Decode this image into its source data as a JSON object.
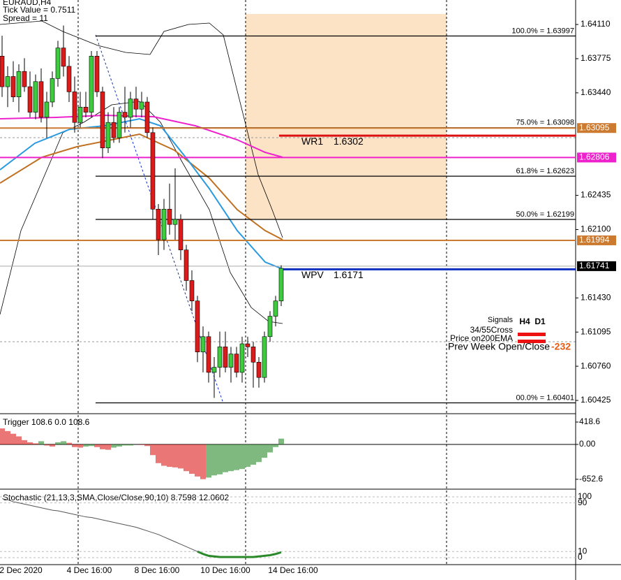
{
  "header": {
    "symbol": "EURAUD,H4",
    "tick_value": "Tick Value = 0.7511",
    "spread": "Spread = 11"
  },
  "price": {
    "ylim": [
      1.60295,
      1.6435
    ],
    "ticks": [
      {
        "value": 1.6411,
        "label": "1.64110"
      },
      1.63775,
      {
        "value": 1.6344,
        "label": "1.63440"
      },
      1.62435,
      {
        "value": 1.621,
        "label": "1.62100"
      },
      {
        "value": 1.6143,
        "label": "1.61430"
      },
      1.61095,
      {
        "value": 1.6076,
        "label": "1.60760"
      },
      1.60425
    ],
    "candles": [
      [
        1.638,
        1.64,
        1.634,
        1.635
      ],
      [
        1.635,
        1.637,
        1.633,
        1.636
      ],
      [
        1.636,
        1.6375,
        1.6335,
        1.634
      ],
      [
        1.634,
        1.6372,
        1.6325,
        1.6365
      ],
      [
        1.6365,
        1.6378,
        1.6345,
        1.635
      ],
      [
        1.635,
        1.6365,
        1.632,
        1.6325
      ],
      [
        1.6325,
        1.6362,
        1.6318,
        1.6355
      ],
      [
        1.6355,
        1.6368,
        1.6315,
        1.632
      ],
      [
        1.632,
        1.6345,
        1.63,
        1.6335
      ],
      [
        1.6335,
        1.6365,
        1.633,
        1.6358
      ],
      [
        1.6358,
        1.6395,
        1.635,
        1.6388
      ],
      [
        1.6388,
        1.641,
        1.636,
        1.637
      ],
      [
        1.637,
        1.638,
        1.6335,
        1.6345
      ],
      [
        1.6345,
        1.636,
        1.6305,
        1.6315
      ],
      [
        1.6315,
        1.6345,
        1.631,
        1.633
      ],
      [
        1.633,
        1.6345,
        1.632,
        1.6325
      ],
      [
        1.6325,
        1.6385,
        1.632,
        1.638
      ],
      [
        1.638,
        1.6385,
        1.634,
        1.6345
      ],
      [
        1.6345,
        1.635,
        1.628,
        1.629
      ],
      [
        1.629,
        1.6325,
        1.6285,
        1.6315
      ],
      [
        1.6315,
        1.633,
        1.6295,
        1.63
      ],
      [
        1.63,
        1.633,
        1.6295,
        1.6325
      ],
      [
        1.6325,
        1.635,
        1.6305,
        1.632
      ],
      [
        1.632,
        1.6345,
        1.631,
        1.6338
      ],
      [
        1.6338,
        1.635,
        1.632,
        1.6328
      ],
      [
        1.6328,
        1.6345,
        1.632,
        1.6335
      ],
      [
        1.6335,
        1.634,
        1.63,
        1.6305
      ],
      [
        1.6305,
        1.631,
        1.622,
        1.623
      ],
      [
        1.623,
        1.6235,
        1.6185,
        1.62
      ],
      [
        1.62,
        1.624,
        1.619,
        1.623
      ],
      [
        1.623,
        1.6255,
        1.6205,
        1.6215
      ],
      [
        1.6215,
        1.627,
        1.62,
        1.622
      ],
      [
        1.622,
        1.6225,
        1.618,
        1.619
      ],
      [
        1.619,
        1.6195,
        1.615,
        1.616
      ],
      [
        1.616,
        1.617,
        1.613,
        1.614
      ],
      [
        1.614,
        1.6145,
        1.608,
        1.609
      ],
      [
        1.609,
        1.6115,
        1.607,
        1.6105
      ],
      [
        1.6105,
        1.611,
        1.606,
        1.607
      ],
      [
        1.607,
        1.6085,
        1.6045,
        1.6075
      ],
      [
        1.6075,
        1.611,
        1.6065,
        1.6095
      ],
      [
        1.6095,
        1.611,
        1.607,
        1.6075
      ],
      [
        1.6075,
        1.6095,
        1.606,
        1.6088
      ],
      [
        1.6088,
        1.6095,
        1.6065,
        1.607
      ],
      [
        1.607,
        1.6105,
        1.606,
        1.6098
      ],
      [
        1.6098,
        1.6105,
        1.6085,
        1.6095
      ],
      [
        1.6095,
        1.61,
        1.6055,
        1.608
      ],
      [
        1.608,
        1.6085,
        1.6055,
        1.6065
      ],
      [
        1.6065,
        1.611,
        1.606,
        1.6105
      ],
      [
        1.6105,
        1.613,
        1.61,
        1.6125
      ],
      [
        1.6125,
        1.6145,
        1.6115,
        1.614
      ],
      [
        1.614,
        1.6175,
        1.6135,
        1.6172
      ]
    ],
    "fib_levels": [
      {
        "label": "100.0% = 1.63997",
        "value": 1.63997
      },
      {
        "label": "75.0% = 1.63098",
        "value": 1.63098
      },
      {
        "label": "61.8% = 1.62623",
        "value": 1.62623
      },
      {
        "label": "50.0% = 1.62199",
        "value": 1.62199
      },
      {
        "label": "00.0% = 1.60401",
        "value": 1.60401
      }
    ],
    "price_tags": [
      {
        "value": 1.63095,
        "color": "#cc7a30"
      },
      {
        "value": 1.62806,
        "color": "#ee22cc"
      },
      {
        "value": 1.61994,
        "color": "#cc7a30"
      },
      {
        "value": 1.61741,
        "color": "#000000"
      }
    ],
    "pivots": [
      {
        "name": "WR1",
        "value": 1.6302,
        "color": "#dd1111"
      },
      {
        "name": "WPV",
        "value": 1.6171,
        "color": "#1030c0"
      }
    ]
  },
  "signals": {
    "title": "Signals",
    "columns": [
      "H4",
      "D1"
    ],
    "rows": [
      "34/55Cross",
      "Price on200EMA"
    ],
    "prev_week": "Prev Week Open/Close",
    "prev_week_value": -232
  },
  "trigger": {
    "label": "Trigger 108.6 0.0 108.6",
    "ylim": [
      -837,
      562
    ],
    "ticks": [
      418.6,
      {
        "value": 0,
        "label": "0.00"
      },
      -652.6
    ],
    "values": [
      300,
      250,
      200,
      150,
      80,
      40,
      20,
      60,
      -20,
      -40,
      40,
      60,
      30,
      -50,
      -60,
      -40,
      -30,
      -50,
      -90,
      -100,
      -60,
      -40,
      -20,
      -20,
      0,
      -10,
      -30,
      -200,
      -350,
      -400,
      -420,
      -430,
      -450,
      -500,
      -550,
      -600,
      -650,
      -620,
      -580,
      -560,
      -520,
      -500,
      -480,
      -460,
      -420,
      -380,
      -330,
      -250,
      -150,
      -50,
      108.6
    ]
  },
  "stochastic": {
    "label": "Stochastic (21,13,3,SMA,Close/Close,90,10) 8.7598 12.0602",
    "ylim": [
      -11.5,
      110.3
    ],
    "ticks": [
      100,
      90,
      10,
      0
    ],
    "values": [
      97,
      95,
      92,
      90,
      88,
      86,
      84,
      82,
      80,
      78,
      77,
      75,
      73,
      71,
      69,
      67,
      66,
      64,
      62,
      60,
      58,
      56,
      54,
      52,
      50,
      47,
      44,
      41,
      38,
      34,
      30,
      26,
      22,
      18,
      14,
      10,
      6,
      3,
      2,
      1,
      1,
      1,
      1,
      1,
      1,
      1,
      2,
      3,
      4,
      6,
      8.7598
    ]
  },
  "dates": [
    "2 Dec 2020",
    "4 Dec 16:00",
    "8 Dec 16:00",
    "10 Dec 16:00",
    "14 Dec 16:00"
  ]
}
